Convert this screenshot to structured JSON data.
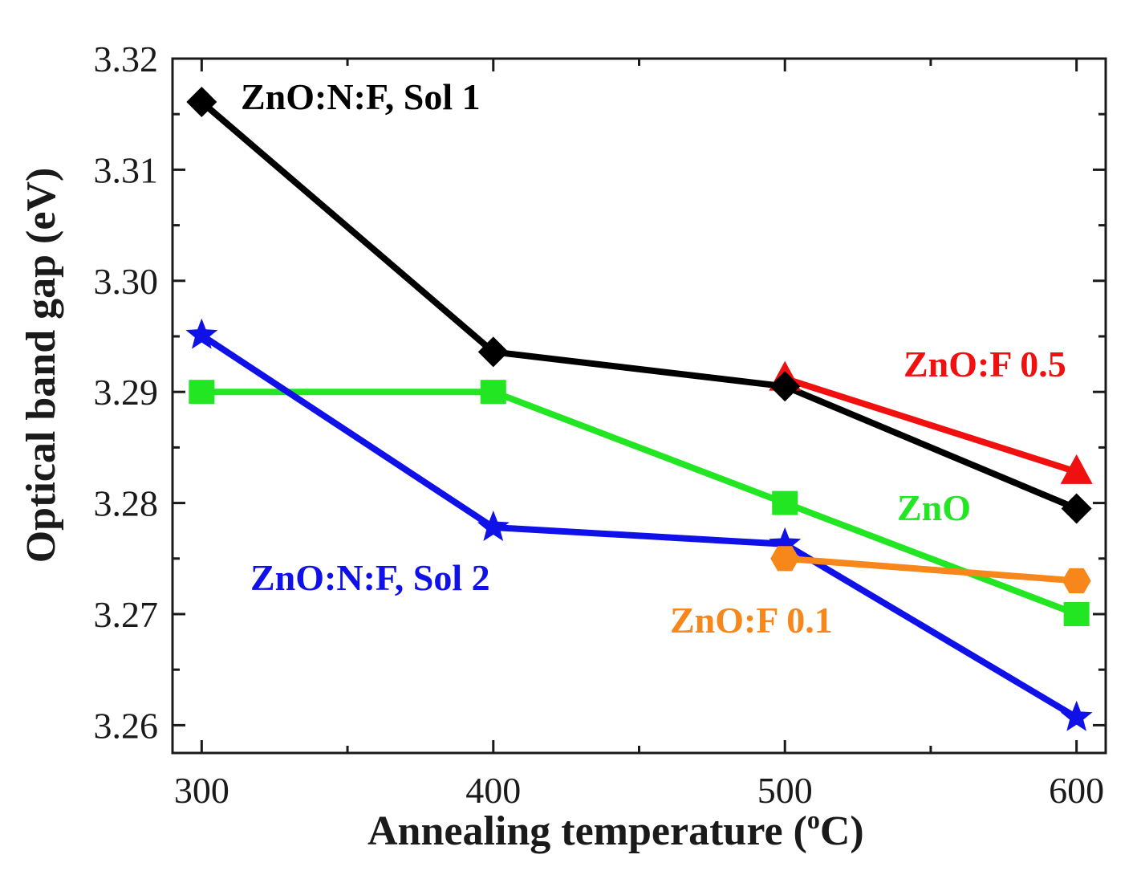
{
  "chart_data": {
    "type": "line",
    "xlabel": "Annealing temperature (",
    "xlabel_sup": "o",
    "xlabel_unit": "C)",
    "ylabel": "Optical band gap (eV)",
    "xlim": [
      290,
      610
    ],
    "ylim": [
      3.2575,
      3.32
    ],
    "xticks": [
      300,
      400,
      500,
      600
    ],
    "xticks_minor": [
      350,
      450,
      550
    ],
    "yticks": [
      3.26,
      3.27,
      3.28,
      3.29,
      3.3,
      3.31,
      3.32
    ],
    "ytick_labels": [
      "3.26",
      "3.27",
      "3.28",
      "3.29",
      "3.30",
      "3.31",
      "3.32"
    ],
    "series": [
      {
        "name": "ZnO:N:F, Sol 1",
        "label": "ZnO:N:F, Sol 1",
        "color": "#000000",
        "marker": "diamond",
        "x": [
          300,
          400,
          500,
          600
        ],
        "y": [
          3.3161,
          3.2936,
          3.2905,
          3.2795
        ]
      },
      {
        "name": "ZnO:N:F, Sol 2",
        "label": "ZnO:N:F, Sol 2",
        "color": "#1010e8",
        "marker": "star",
        "x": [
          300,
          400,
          500,
          600
        ],
        "y": [
          3.2951,
          3.2778,
          3.2763,
          3.2607
        ]
      },
      {
        "name": "ZnO",
        "label": "ZnO",
        "color": "#22e622",
        "marker": "square",
        "x": [
          300,
          400,
          500,
          600
        ],
        "y": [
          3.29,
          3.29,
          3.28,
          3.27
        ]
      },
      {
        "name": "ZnO:F 0.5",
        "label": "ZnO:F 0.5",
        "color": "#f01010",
        "marker": "triangle",
        "x": [
          500,
          600
        ],
        "y": [
          3.2912,
          3.2828
        ]
      },
      {
        "name": "ZnO:F 0.1",
        "label": "ZnO:F 0.1",
        "color": "#f7861b",
        "marker": "hexagon",
        "x": [
          500,
          600
        ],
        "y": [
          3.275,
          3.273
        ]
      }
    ]
  }
}
